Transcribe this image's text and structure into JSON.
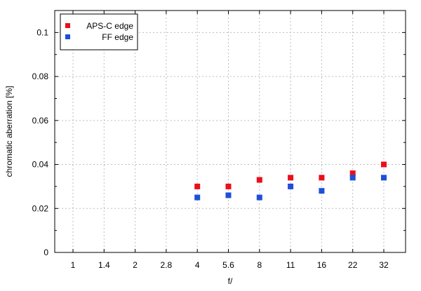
{
  "chart_data": {
    "type": "scatter",
    "title": "",
    "xlabel": "f/",
    "ylabel": "chromatic aberration [%]",
    "categories": [
      "1",
      "1.4",
      "2",
      "2.8",
      "4",
      "5.6",
      "8",
      "11",
      "16",
      "22",
      "32"
    ],
    "ylim": [
      0,
      0.11
    ],
    "yticks": [
      0,
      0.02,
      0.04,
      0.06,
      0.08,
      0.1
    ],
    "ytick_labels": [
      "0",
      "0.02",
      "0.04",
      "0.06",
      "0.08",
      "0.1"
    ],
    "grid": true,
    "legend_position": "top-left",
    "series": [
      {
        "name": "APS-C edge",
        "color": "#e8101a",
        "marker": "square",
        "x": [
          "4",
          "5.6",
          "8",
          "11",
          "16",
          "22",
          "32"
        ],
        "values": [
          0.03,
          0.03,
          0.033,
          0.034,
          0.034,
          0.036,
          0.04
        ]
      },
      {
        "name": "FF edge",
        "color": "#1e4fd8",
        "marker": "square",
        "x": [
          "4",
          "5.6",
          "8",
          "11",
          "16",
          "22",
          "32"
        ],
        "values": [
          0.025,
          0.026,
          0.025,
          0.03,
          0.028,
          0.034,
          0.034
        ]
      }
    ]
  }
}
